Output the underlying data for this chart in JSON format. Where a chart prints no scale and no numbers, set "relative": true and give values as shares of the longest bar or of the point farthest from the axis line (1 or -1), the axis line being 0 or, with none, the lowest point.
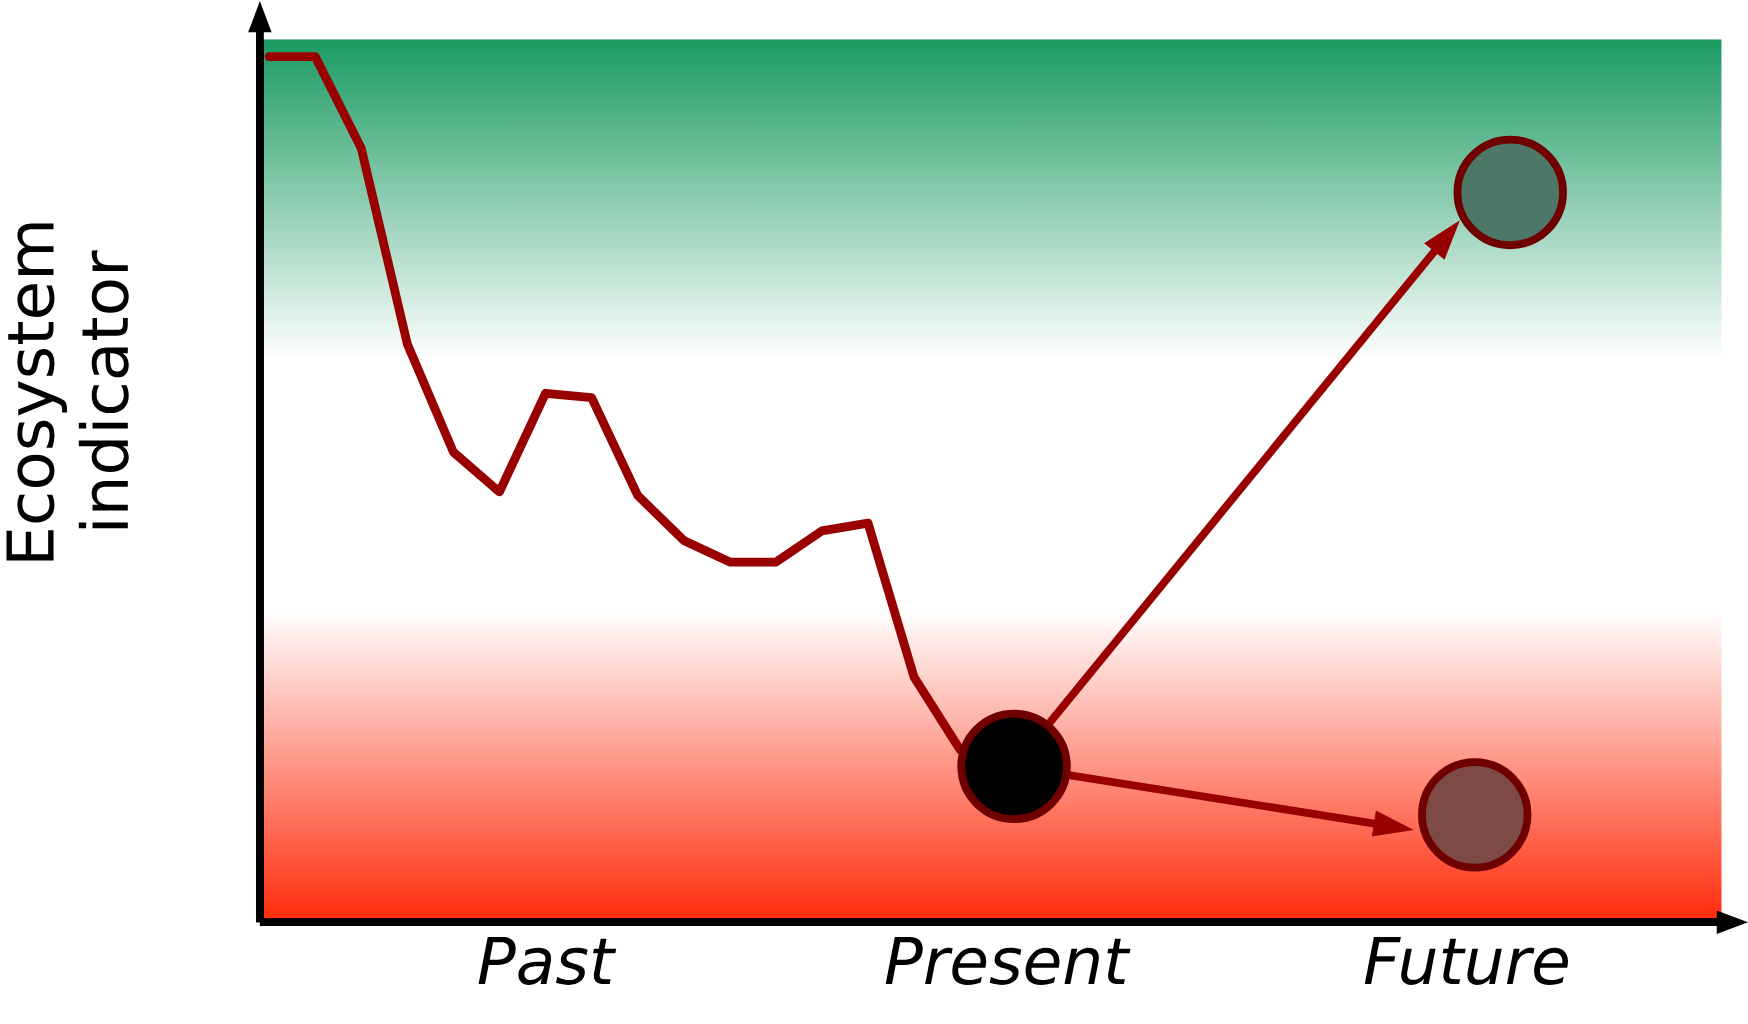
{
  "chart_data": {
    "type": "line",
    "relative": true,
    "ylabel": "Ecosystem indicator",
    "categories": [
      null,
      null,
      null,
      null,
      null,
      null,
      "Past",
      null,
      null,
      null,
      null,
      null,
      null,
      null,
      null,
      null,
      "Present",
      null,
      null,
      null,
      null,
      null,
      null,
      null,
      null,
      null,
      "Future",
      null,
      null,
      null,
      null,
      null
    ],
    "bands": [
      {
        "axis": "y",
        "from": 0.65,
        "to": 1.02,
        "color": "#1a9a62"
      },
      {
        "axis": "y",
        "from": 0,
        "to": 0.36,
        "color": "#ff2a0a"
      }
    ],
    "series": [
      {
        "values": [
          1,
          1,
          0.894,
          0.668,
          0.543,
          0.497,
          0.611,
          0.606,
          0.493,
          0.441,
          0.416,
          0.416,
          0.452,
          0.461,
          0.283,
          0.199,
          null,
          null,
          null,
          null,
          null,
          null,
          null,
          null,
          null,
          null,
          null,
          null,
          null,
          null,
          null,
          null
        ],
        "color": "#990000"
      }
    ],
    "grid": false
  }
}
